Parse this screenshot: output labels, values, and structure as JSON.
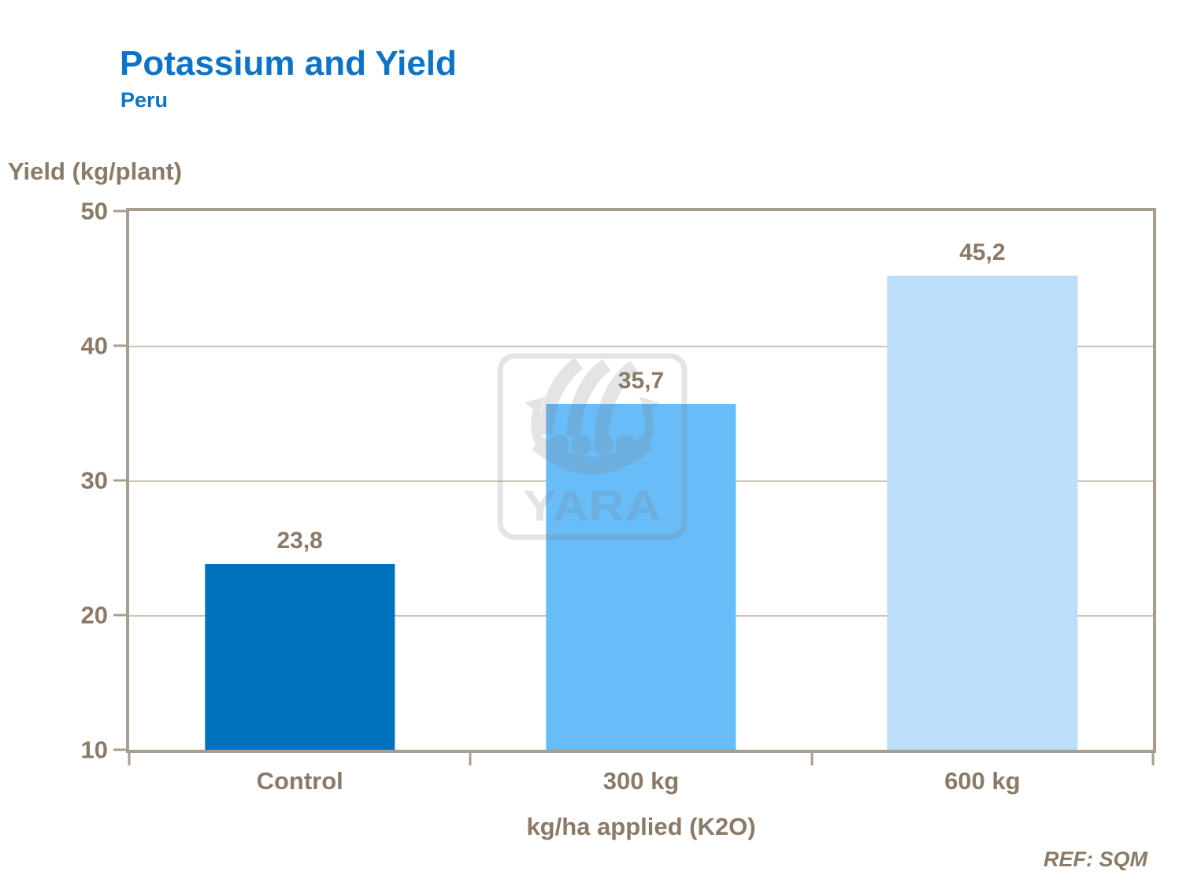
{
  "header": {
    "title": "Potassium and Yield",
    "subtitle": "Peru"
  },
  "chart_data": {
    "type": "bar",
    "categories": [
      "Control",
      "300 kg",
      "600 kg"
    ],
    "values": [
      23.8,
      35.7,
      45.2
    ],
    "value_labels": [
      "23,8",
      "35,7",
      "45,2"
    ],
    "title": "Potassium and Yield",
    "subtitle": "Peru",
    "xlabel": "kg/ha applied (K2O)",
    "ylabel": "Yield (kg/plant)",
    "ylim": [
      10,
      50
    ],
    "yticks": [
      "50",
      "40",
      "30",
      "20",
      "10"
    ],
    "grid": true,
    "legend": "none",
    "bar_colors": [
      "#0071be",
      "#68bcf8",
      "#bbdefa"
    ]
  },
  "watermark": {
    "text": "YARA",
    "icon": "yara-viking-ship-logo"
  },
  "footer": {
    "ref": "REF: SQM"
  },
  "colors": {
    "title_blue": "#0d73c7",
    "text_taupe": "#8a7a67",
    "axis_line": "#a89e90",
    "gridline": "#cdc4b8",
    "bar1": "#0071be",
    "bar2": "#68bcf8",
    "bar3": "#bbdefa",
    "watermark_gray": "#e5e5e5"
  }
}
